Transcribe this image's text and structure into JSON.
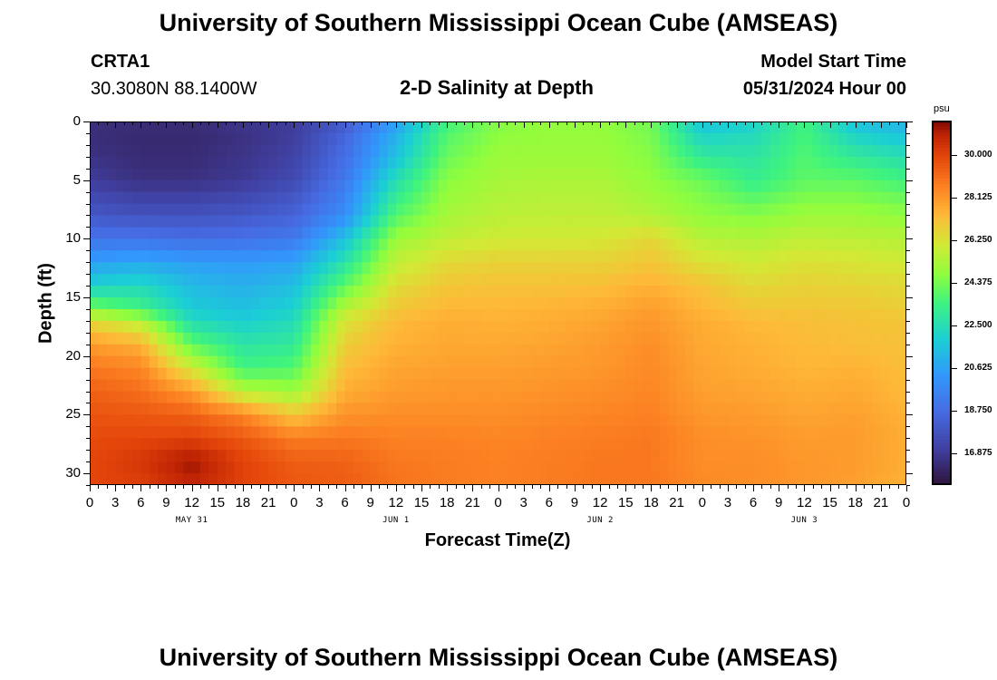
{
  "header": {
    "title": "University of Southern Mississippi Ocean Cube (AMSEAS)",
    "station": "CRTA1",
    "coords": "30.3080N  88.1400W",
    "plot_title": "2-D Salinity at Depth",
    "model_label": "Model Start Time",
    "model_time": "05/31/2024 Hour 00"
  },
  "footer": {
    "title": "University of Southern Mississippi Ocean Cube (AMSEAS)"
  },
  "chart_data": {
    "type": "heatmap",
    "title": "2-D Salinity at Depth",
    "xlabel": "Forecast Time(Z)",
    "ylabel": "Depth (ft)",
    "x_hours_range": [
      0,
      96
    ],
    "ylim": [
      0,
      31
    ],
    "y_reversed": true,
    "x_ticks": [
      "0",
      "3",
      "6",
      "9",
      "12",
      "15",
      "18",
      "21",
      "0",
      "3",
      "6",
      "9",
      "12",
      "15",
      "18",
      "21",
      "0",
      "3",
      "6",
      "9",
      "12",
      "15",
      "18",
      "21",
      "0",
      "3",
      "6",
      "9",
      "12",
      "15",
      "18",
      "21",
      "0"
    ],
    "y_ticks": [
      0,
      5,
      10,
      15,
      20,
      25,
      30
    ],
    "date_labels": [
      "MAY 31",
      "JUN 1",
      "JUN 2",
      "JUN 3"
    ],
    "colorbar": {
      "unit": "psu",
      "range": [
        15.5,
        31.5
      ],
      "ticks": [
        "30.000",
        "28.125",
        "26.250",
        "24.375",
        "22.500",
        "20.625",
        "18.750",
        "16.875"
      ],
      "tick_values": [
        30.0,
        28.125,
        26.25,
        24.375,
        22.5,
        20.625,
        18.75,
        16.875
      ]
    },
    "depths_ft": [
      0,
      1,
      3,
      5,
      8,
      10,
      12,
      14,
      16,
      17,
      19,
      21,
      23,
      25,
      27,
      29,
      31
    ],
    "hours": [
      0,
      6,
      12,
      18,
      24,
      30,
      36,
      42,
      48,
      54,
      60,
      66,
      72,
      78,
      84,
      90,
      96
    ],
    "salinity": [
      [
        16.5,
        16.5,
        16.5,
        16.8,
        17.0,
        18.0,
        20.5,
        23.5,
        24.6,
        24.8,
        24.8,
        24.3,
        21.5,
        22.0,
        23.5,
        21.5,
        21.0
      ],
      [
        16.5,
        16.3,
        16.3,
        16.6,
        17.0,
        18.5,
        21.0,
        23.8,
        24.7,
        24.9,
        24.9,
        24.4,
        22.0,
        22.3,
        23.6,
        22.0,
        21.5
      ],
      [
        16.6,
        16.4,
        16.4,
        16.7,
        17.2,
        18.8,
        21.5,
        24.2,
        25.0,
        25.0,
        25.0,
        24.6,
        23.0,
        22.8,
        23.8,
        23.0,
        22.5
      ],
      [
        17.0,
        16.6,
        16.6,
        16.9,
        17.5,
        19.2,
        22.5,
        24.7,
        25.2,
        25.3,
        25.3,
        24.8,
        24.2,
        23.2,
        24.0,
        24.0,
        23.5
      ],
      [
        18.0,
        17.8,
        17.8,
        18.0,
        18.4,
        20.0,
        23.8,
        25.2,
        25.6,
        25.7,
        25.7,
        25.4,
        24.8,
        24.6,
        25.0,
        25.0,
        24.8
      ],
      [
        19.0,
        19.0,
        18.8,
        18.9,
        19.2,
        21.5,
        25.0,
        25.7,
        26.0,
        26.0,
        26.1,
        26.6,
        25.5,
        25.4,
        25.7,
        25.6,
        25.5
      ],
      [
        20.5,
        20.8,
        20.5,
        20.4,
        20.6,
        22.7,
        25.7,
        26.5,
        26.7,
        26.7,
        26.7,
        27.0,
        26.3,
        26.0,
        26.3,
        26.2,
        26.0
      ],
      [
        22.0,
        22.3,
        21.3,
        21.0,
        21.4,
        24.0,
        26.4,
        27.0,
        27.1,
        27.1,
        27.2,
        27.5,
        27.1,
        26.5,
        26.7,
        26.6,
        26.5
      ],
      [
        24.5,
        23.5,
        21.8,
        21.5,
        22.0,
        25.5,
        27.0,
        27.4,
        27.4,
        27.5,
        27.6,
        28.0,
        27.4,
        27.0,
        27.0,
        27.0,
        26.8
      ],
      [
        26.5,
        25.5,
        22.4,
        21.9,
        22.4,
        26.2,
        27.3,
        27.6,
        27.5,
        27.6,
        27.8,
        28.1,
        27.6,
        27.3,
        27.2,
        27.1,
        27.0
      ],
      [
        28.0,
        27.5,
        24.0,
        22.8,
        23.0,
        26.8,
        27.5,
        27.7,
        27.7,
        27.8,
        28.0,
        28.3,
        27.7,
        27.5,
        27.3,
        27.2,
        27.1
      ],
      [
        28.8,
        28.5,
        26.0,
        23.5,
        23.8,
        27.2,
        27.8,
        27.9,
        27.9,
        28.0,
        28.1,
        28.4,
        27.8,
        27.6,
        27.4,
        27.5,
        27.2
      ],
      [
        29.3,
        29.0,
        28.0,
        25.5,
        25.0,
        27.6,
        28.0,
        28.1,
        28.1,
        28.2,
        28.3,
        28.5,
        27.9,
        27.8,
        27.6,
        27.7,
        27.3
      ],
      [
        29.6,
        29.5,
        29.3,
        28.5,
        27.0,
        28.2,
        28.3,
        28.3,
        28.3,
        28.4,
        28.5,
        28.6,
        28.1,
        28.0,
        27.8,
        27.9,
        27.5
      ],
      [
        29.8,
        29.9,
        30.0,
        29.5,
        28.7,
        28.8,
        28.6,
        28.6,
        28.5,
        28.6,
        28.7,
        28.8,
        28.3,
        28.2,
        28.0,
        28.0,
        27.6
      ],
      [
        29.9,
        30.3,
        31.2,
        30.0,
        29.4,
        29.3,
        28.8,
        28.7,
        28.6,
        28.7,
        28.8,
        28.8,
        28.3,
        28.3,
        28.1,
        28.0,
        27.6
      ],
      [
        29.9,
        30.1,
        30.8,
        30.0,
        29.5,
        29.4,
        28.9,
        28.7,
        28.6,
        28.7,
        28.8,
        28.8,
        28.4,
        28.3,
        28.1,
        27.9,
        27.5
      ]
    ]
  }
}
